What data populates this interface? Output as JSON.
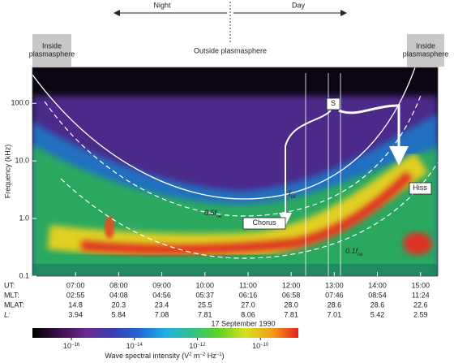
{
  "chart_data": {
    "type": "spectrogram",
    "top_labels": {
      "night": "Night",
      "day": "Day"
    },
    "regions": [
      {
        "lines": [
          "Inside",
          "plasmasphere"
        ]
      },
      {
        "lines": [
          "Outside plasmasphere"
        ]
      },
      {
        "lines": [
          "Inside",
          "plasmasphere"
        ]
      }
    ],
    "y_label": "Frequency (kHz)",
    "log_y": true,
    "ylim": [
      0.1,
      420
    ],
    "yticks": [
      0.1,
      {
        "value": 1,
        "label": "1.0"
      },
      {
        "value": 10,
        "label": "10.0"
      },
      {
        "value": 100,
        "label": "100.0"
      }
    ],
    "xlim": [
      6,
      15.4
    ],
    "xticks": [
      {
        "value": 7,
        "label": "07:00"
      },
      {
        "value": 8,
        "label": "08:00"
      },
      {
        "value": 9,
        "label": "09:00"
      },
      {
        "value": 10,
        "label": "10:00"
      },
      {
        "value": 11,
        "label": "11:00"
      },
      {
        "value": 12,
        "label": "12:00"
      },
      {
        "value": 13,
        "label": "13:00"
      },
      {
        "value": 14,
        "label": "14:00"
      },
      {
        "value": 15,
        "label": "15:00"
      }
    ],
    "x_row_label": "UT:",
    "ephemeris": [
      {
        "label": "MLT:",
        "values": [
          "02:55",
          "04:08",
          "04:56",
          "05:37",
          "06:16",
          "06:58",
          "07:46",
          "08:54",
          "11:24"
        ]
      },
      {
        "label": "MLAT:",
        "values": [
          "14.8",
          "20.3",
          "23.4",
          "25.5",
          "27.0",
          "28.0",
          "28.6",
          "28.6",
          "22.6"
        ]
      },
      {
        "label": "L:",
        "values": [
          "3.94",
          "5.84",
          "7.08",
          "7.81",
          "8.06",
          "7.81",
          "7.01",
          "5.42",
          "2.59"
        ]
      }
    ],
    "date": "17 September 1990",
    "annotations": [
      {
        "text": "S"
      },
      {
        "text": "Chorus"
      },
      {
        "text": "Hiss"
      },
      {
        "text": "f",
        "sub": "ce"
      },
      {
        "text": "0.5f",
        "sub": "ce"
      },
      {
        "text": "0.1f",
        "sub": "ce"
      }
    ],
    "colorbar": {
      "label": "Wave spectral intensity (V",
      "label_parts": [
        "2",
        " m",
        "−2",
        " Hz",
        "−1",
        ")"
      ],
      "colors": [
        "#000000",
        "#3a0f4a",
        "#6a2a8c",
        "#3a3cb0",
        "#2066d8",
        "#1fb0e6",
        "#2fc28a",
        "#5ed224",
        "#d6e21c",
        "#f2a012",
        "#e82020"
      ],
      "clim": [
        5.8e-18,
        1.6e-09
      ],
      "ticks": [
        {
          "value": 1e-16,
          "label": "10",
          "exponent": "−16"
        },
        {
          "value": 1e-14,
          "label": "10",
          "exponent": "−14"
        },
        {
          "value": 1e-12,
          "label": "10",
          "exponent": "−12"
        },
        {
          "value": 1e-10,
          "label": "10",
          "exponent": "−10"
        }
      ]
    }
  }
}
